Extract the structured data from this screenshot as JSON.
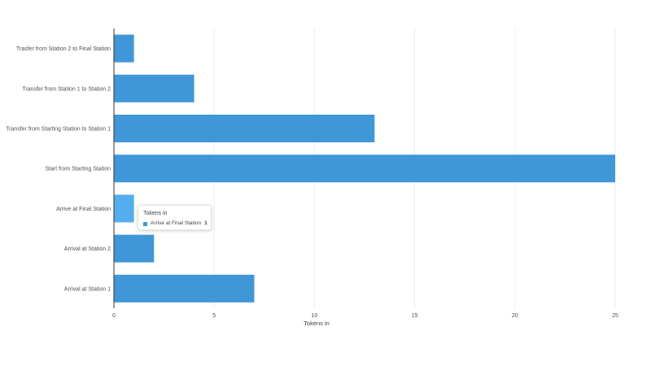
{
  "colors": {
    "bar": "#3f97d8",
    "bar_hover": "#54aeee",
    "grid": "#ebedf0",
    "axis": "#2d3138"
  },
  "chart_data": {
    "type": "bar",
    "orientation": "horizontal",
    "categories": [
      "Trasfer from Station 2 to Final Station",
      "Transfer from Station 1 to Station 2",
      "Transfer from Starting Station to  Station 1",
      "Start from Starting Station",
      "Arrive at Final Station",
      "Arrival at Station 2",
      "Arrival at Station 1"
    ],
    "values": [
      1,
      4,
      13,
      25,
      1,
      2,
      7
    ],
    "xlabel": "Tokens in",
    "ylabel": "",
    "xlim": [
      0,
      25
    ],
    "xticks": [
      0,
      5,
      10,
      15,
      20,
      25
    ],
    "grid": true,
    "hovered_index": 4
  },
  "tooltip": {
    "title": "Tokens in",
    "label": "Arrive at Final Station",
    "value": "1"
  }
}
